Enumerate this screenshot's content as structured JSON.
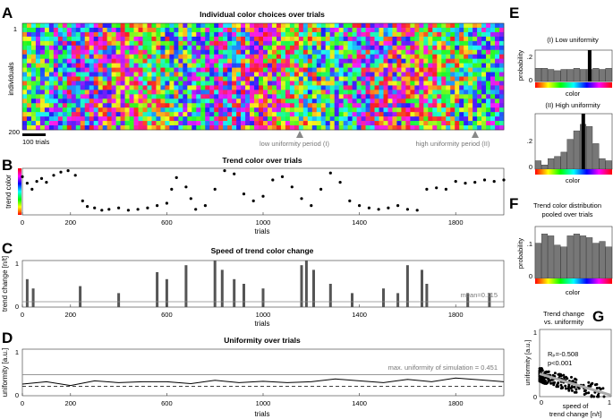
{
  "panel_letters": [
    "A",
    "B",
    "C",
    "D",
    "E",
    "F",
    "G"
  ],
  "chart_data": [
    {
      "id": "A",
      "type": "heatmap",
      "title": "Individual color choices over trials",
      "ylabel": "individuals",
      "yticks": [
        "1",
        "200"
      ],
      "scalebar_label": "100 trials",
      "annotations": [
        "low uniformity period (I)",
        "high uniformity period (II)"
      ],
      "ylim": [
        1,
        200
      ],
      "xlim": [
        0,
        2000
      ],
      "colormap": "hue"
    },
    {
      "id": "B",
      "type": "scatter",
      "title": "Trend color over trials",
      "xlabel": "trials",
      "ylabel": "trend color",
      "xlim": [
        0,
        2000
      ],
      "xticks": [
        0,
        200,
        600,
        1000,
        1400,
        1800
      ],
      "ylim": [
        0,
        1
      ],
      "points_x": [
        0,
        20,
        40,
        60,
        80,
        100,
        130,
        160,
        190,
        220,
        250,
        270,
        300,
        330,
        360,
        400,
        440,
        480,
        520,
        560,
        600,
        620,
        640,
        680,
        700,
        720,
        760,
        800,
        840,
        880,
        920,
        960,
        1000,
        1040,
        1080,
        1120,
        1160,
        1200,
        1240,
        1280,
        1320,
        1360,
        1400,
        1440,
        1480,
        1520,
        1560,
        1600,
        1640,
        1680,
        1720,
        1760,
        1800,
        1840,
        1880,
        1920,
        1960,
        2000
      ],
      "points_y": [
        0.82,
        0.68,
        0.55,
        0.72,
        0.78,
        0.7,
        0.85,
        0.92,
        0.95,
        0.85,
        0.3,
        0.18,
        0.15,
        0.1,
        0.12,
        0.15,
        0.1,
        0.12,
        0.15,
        0.2,
        0.25,
        0.55,
        0.8,
        0.6,
        0.35,
        0.12,
        0.2,
        0.55,
        0.95,
        0.88,
        0.45,
        0.3,
        0.4,
        0.75,
        0.82,
        0.6,
        0.35,
        0.2,
        0.55,
        0.9,
        0.7,
        0.3,
        0.2,
        0.15,
        0.12,
        0.15,
        0.2,
        0.12,
        0.1,
        0.55,
        0.58,
        0.55,
        0.72,
        0.68,
        0.7,
        0.75,
        0.72,
        0.75
      ]
    },
    {
      "id": "C",
      "type": "area",
      "title": "Speed of trend color change",
      "xlabel": "trials",
      "ylabel": "trend change [n/t]",
      "xlim": [
        0,
        2000
      ],
      "xticks": [
        0,
        200,
        600,
        1000,
        1400,
        1800
      ],
      "ylim": [
        0,
        1
      ],
      "yticks": [
        0,
        1
      ],
      "mean_label": "mean=0.115",
      "mean_value": 0.115,
      "spikes": [
        [
          20,
          0.6
        ],
        [
          45,
          0.4
        ],
        [
          240,
          0.45
        ],
        [
          400,
          0.3
        ],
        [
          560,
          0.75
        ],
        [
          600,
          0.6
        ],
        [
          680,
          0.9
        ],
        [
          800,
          1.0
        ],
        [
          830,
          0.8
        ],
        [
          880,
          0.6
        ],
        [
          920,
          0.5
        ],
        [
          1000,
          0.4
        ],
        [
          1160,
          0.9
        ],
        [
          1180,
          1.0
        ],
        [
          1210,
          0.8
        ],
        [
          1280,
          0.5
        ],
        [
          1370,
          0.3
        ],
        [
          1500,
          0.4
        ],
        [
          1560,
          0.3
        ],
        [
          1600,
          0.9
        ],
        [
          1660,
          0.8
        ],
        [
          1680,
          0.5
        ],
        [
          1850,
          0.3
        ],
        [
          1940,
          0.3
        ]
      ]
    },
    {
      "id": "D",
      "type": "line",
      "title": "Uniformity over trials",
      "xlabel": "trials",
      "ylabel": "uniformity [a.u.]",
      "xlim": [
        0,
        2000
      ],
      "xticks": [
        0,
        200,
        600,
        1000,
        1400,
        1800
      ],
      "ylim": [
        0,
        1
      ],
      "yticks": [
        0,
        1
      ],
      "max_label": "max. uniformity of simulation = 0.451",
      "max_value": 0.451,
      "baseline_value": 0.2,
      "x": [
        0,
        100,
        200,
        300,
        400,
        500,
        600,
        700,
        800,
        900,
        1000,
        1100,
        1200,
        1300,
        1400,
        1500,
        1600,
        1700,
        1800,
        1900,
        2000
      ],
      "y": [
        0.25,
        0.3,
        0.22,
        0.32,
        0.28,
        0.3,
        0.3,
        0.26,
        0.33,
        0.28,
        0.31,
        0.28,
        0.3,
        0.36,
        0.32,
        0.28,
        0.35,
        0.3,
        0.38,
        0.34,
        0.3
      ]
    },
    {
      "id": "E1",
      "type": "bar",
      "title": "(I) Low uniformity",
      "xlabel": "color",
      "ylabel": "probability",
      "yticks": [
        "0",
        ".2"
      ],
      "ylim": [
        0,
        0.26
      ],
      "values": [
        0.11,
        0.11,
        0.1,
        0.09,
        0.1,
        0.1,
        0.11,
        0.1,
        0.1,
        0.11,
        0.1,
        0.11
      ],
      "marker_bin": 8
    },
    {
      "id": "E2",
      "type": "bar",
      "title": "(II) High uniformity",
      "xlabel": "color",
      "ylabel": "probability",
      "yticks": [
        "0",
        ".2"
      ],
      "ylim": [
        0,
        0.26
      ],
      "values": [
        0.04,
        0.02,
        0.05,
        0.06,
        0.08,
        0.14,
        0.18,
        0.21,
        0.2,
        0.12,
        0.05,
        0.04
      ],
      "marker_bin": 7
    },
    {
      "id": "F",
      "type": "bar",
      "title": "Trend color distribution pooled over trials",
      "xlabel": "color",
      "ylabel": "probability",
      "yticks": [
        "0",
        ".1"
      ],
      "ylim": [
        0,
        0.14
      ],
      "values": [
        0.095,
        0.12,
        0.115,
        0.09,
        0.085,
        0.115,
        0.12,
        0.115,
        0.11,
        0.095,
        0.1,
        0.085
      ]
    },
    {
      "id": "G",
      "type": "scatter",
      "title": "Trend change vs. uniformity",
      "xlabel": "speed of trend change [n/t]",
      "ylabel": "uniformity [a.u.]",
      "xlim": [
        0,
        1
      ],
      "ylim": [
        0,
        1
      ],
      "xticks": [
        "0",
        "1"
      ],
      "yticks": [
        "0",
        "1"
      ],
      "stats_r": "Rₚ=-0.508",
      "stats_p": "p<0.001",
      "fit": {
        "x": [
          0,
          1
        ],
        "y": [
          0.34,
          0.02
        ]
      }
    }
  ]
}
